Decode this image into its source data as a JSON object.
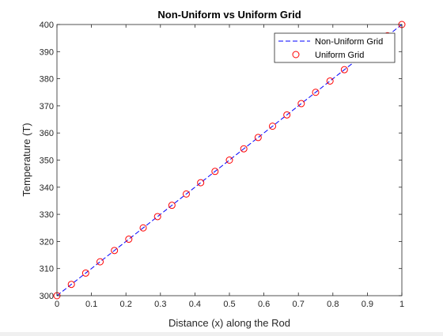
{
  "chart_data": {
    "type": "line",
    "title": "Non-Uniform vs Uniform Grid",
    "xlabel": "Distance (x) along the Rod",
    "ylabel": "Temperature (T)",
    "xlim": [
      0,
      1
    ],
    "ylim": [
      300,
      400
    ],
    "xticks": [
      0,
      0.1,
      0.2,
      0.3,
      0.4,
      0.5,
      0.6,
      0.7,
      0.8,
      0.9,
      1
    ],
    "xtick_labels": [
      "0",
      "0.1",
      "0.2",
      "0.3",
      "0.4",
      "0.5",
      "0.6",
      "0.7",
      "0.8",
      "0.9",
      "1"
    ],
    "yticks": [
      300,
      310,
      320,
      330,
      340,
      350,
      360,
      370,
      380,
      390,
      400
    ],
    "ytick_labels": [
      "300",
      "310",
      "320",
      "330",
      "340",
      "350",
      "360",
      "370",
      "380",
      "390",
      "400"
    ],
    "grid": false,
    "legend_position": "top-right",
    "series": [
      {
        "name": "Non-Uniform Grid",
        "style": "dashed-line",
        "color": "#0000ff",
        "x": [
          0,
          1
        ],
        "y": [
          300,
          400
        ]
      },
      {
        "name": "Uniform Grid",
        "style": "circle-markers",
        "color": "#ff0000",
        "x": [
          0,
          0.0417,
          0.0833,
          0.125,
          0.1667,
          0.2083,
          0.25,
          0.2917,
          0.3333,
          0.375,
          0.4167,
          0.4583,
          0.5,
          0.5417,
          0.5833,
          0.625,
          0.6667,
          0.7083,
          0.75,
          0.7917,
          0.8333,
          0.875,
          0.9167,
          0.9583,
          1
        ],
        "y": [
          300,
          304.17,
          308.33,
          312.5,
          316.67,
          320.83,
          325,
          329.17,
          333.33,
          337.5,
          341.67,
          345.83,
          350,
          354.17,
          358.33,
          362.5,
          366.67,
          370.83,
          375,
          379.17,
          383.33,
          387.5,
          391.67,
          395.83,
          400
        ]
      }
    ]
  }
}
